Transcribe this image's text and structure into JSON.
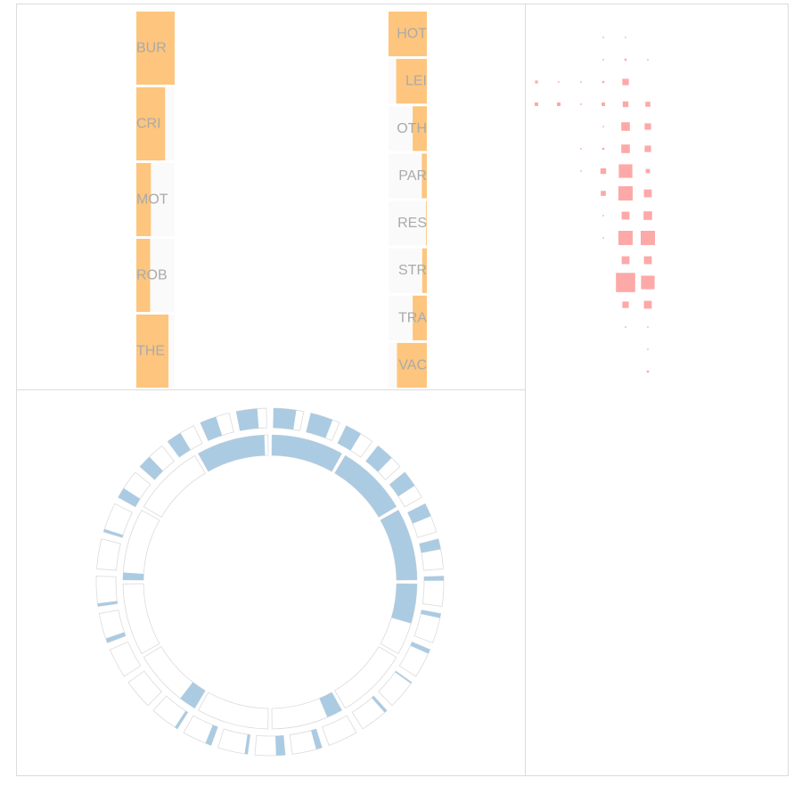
{
  "chart_data": [
    {
      "type": "bar",
      "panel": "top-left",
      "orientation": "horizontal",
      "columns": [
        {
          "categories": [
            "BUR",
            "CRI",
            "MOT",
            "ROB",
            "THE"
          ],
          "values": [
            1.0,
            0.75,
            0.38,
            0.36,
            0.84
          ]
        },
        {
          "categories": [
            "HOT",
            "LEI",
            "OTH",
            "PAR",
            "RES",
            "STR",
            "TRA",
            "VAC"
          ],
          "values": [
            1.0,
            0.8,
            0.37,
            0.13,
            0.02,
            0.12,
            0.37,
            0.78
          ]
        }
      ]
    },
    {
      "type": "radial-bar",
      "panel": "bottom-left",
      "rings": [
        {
          "name": "inner",
          "values": [
            1.0,
            1.0,
            1.0,
            0.55,
            0.0,
            0.22,
            0.0,
            0.24,
            0.0,
            0.1,
            0.0,
            0.95
          ]
        },
        {
          "name": "outer",
          "values": [
            0.75,
            0.75,
            0.55,
            0.6,
            0.55,
            0.45,
            0.35,
            0.15,
            0.15,
            0.15,
            0.05,
            0.1,
            0.0,
            0.2,
            0.3,
            0.1,
            0.2,
            0.1,
            0.0,
            0.0,
            0.15,
            0.1,
            0.0,
            0.1,
            0.35,
            0.45,
            0.5,
            0.55,
            0.7
          ]
        }
      ]
    },
    {
      "type": "heatmap",
      "panel": "right",
      "encoding": "square size = magnitude",
      "columns": 6,
      "rows": 16,
      "matrix": [
        [
          0,
          0,
          0,
          0.1,
          0.05,
          0
        ],
        [
          0,
          0,
          0,
          0.1,
          0.15,
          0.1
        ],
        [
          0.2,
          0.1,
          0.1,
          0.15,
          0.45,
          0
        ],
        [
          0.25,
          0.25,
          0.1,
          0.25,
          0.4,
          0.35
        ],
        [
          0,
          0,
          0,
          0.05,
          0.6,
          0.45
        ],
        [
          0,
          0,
          0.1,
          0.15,
          0.6,
          0.45
        ],
        [
          0,
          0,
          0.05,
          0.4,
          0.95,
          0.3
        ],
        [
          0,
          0,
          0,
          0.35,
          1.0,
          0.55
        ],
        [
          0,
          0,
          0,
          0.1,
          0.55,
          0.6
        ],
        [
          0,
          0,
          0,
          0.1,
          1.0,
          1.0
        ],
        [
          0,
          0,
          0,
          0,
          0.55,
          0.55
        ],
        [
          0,
          0,
          0,
          0,
          1.35,
          0.95
        ],
        [
          0,
          0,
          0,
          0,
          0.45,
          0.55
        ],
        [
          0,
          0,
          0,
          0,
          0.1,
          0.05
        ],
        [
          0,
          0,
          0,
          0,
          0,
          0.05
        ],
        [
          0,
          0,
          0,
          0,
          0,
          0.15
        ]
      ]
    }
  ],
  "colors": {
    "bar_fill": "#fdbf6f",
    "bar_background": "#f5f5f5",
    "ring_fill": "#a6c8e0",
    "ring_outline": "#cccccc",
    "heatmap_fill": "#fb9a99",
    "panel_border": "#dcdcdc",
    "label_text": "#aaaaaa"
  }
}
